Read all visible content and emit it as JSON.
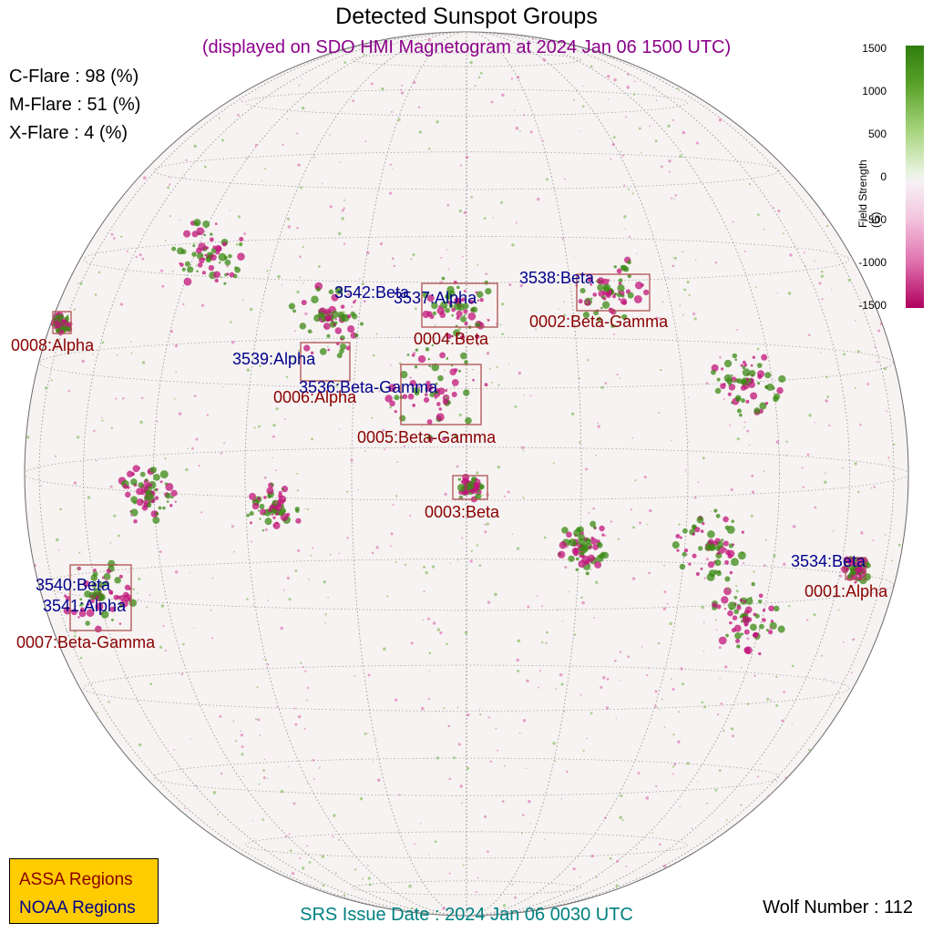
{
  "header": {
    "title": "Detected Sunspot Groups",
    "subtitle": "(displayed on SDO HMI Magnetogram at 2024 Jan 06 1500 UTC)"
  },
  "flare_probabilities": [
    {
      "text": "C-Flare : 98 (%)"
    },
    {
      "text": "M-Flare : 51 (%)"
    },
    {
      "text": "X-Flare :  4 (%)"
    }
  ],
  "regions": {
    "assa": [
      {
        "label": "0008:Alpha"
      },
      {
        "label": "0004:Beta"
      },
      {
        "label": "0002:Beta-Gamma"
      },
      {
        "label": "0006:Alpha"
      },
      {
        "label": "0005:Beta-Gamma"
      },
      {
        "label": "0003:Beta"
      },
      {
        "label": "0001:Alpha"
      },
      {
        "label": "0007:Beta-Gamma"
      }
    ],
    "noaa": [
      {
        "label": "3542:Beta"
      },
      {
        "label": "3537:Alpha"
      },
      {
        "label": "3538:Beta"
      },
      {
        "label": "3539:Alpha"
      },
      {
        "label": "3536:Beta-Gamma"
      },
      {
        "label": "3534:Beta"
      },
      {
        "label": "3540:Beta"
      },
      {
        "label": "3541:Alpha"
      }
    ]
  },
  "colorbar": {
    "label": "Field Strength (G)",
    "ticks": [
      "1500",
      "1000",
      "500",
      "0",
      "-500",
      "-1000",
      "-1500"
    ],
    "positive_color": "#2f7d0e",
    "negative_color": "#b0005e"
  },
  "legend": {
    "assa": "ASSA Regions",
    "noaa": "NOAA Regions",
    "assa_color": "#8b0000",
    "noaa_color": "#00008b",
    "background": "#ffcc00"
  },
  "footer": {
    "srs_issue": "SRS Issue Date : 2024 Jan 06 0030 UTC",
    "wolf_number": "Wolf Number : 112"
  }
}
